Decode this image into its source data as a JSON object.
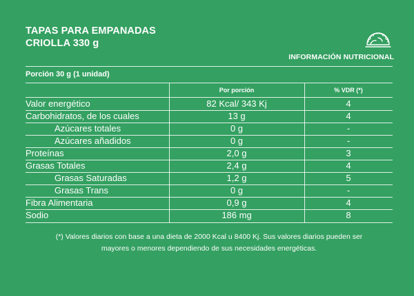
{
  "header": {
    "title_line1": "TAPAS PARA EMPANADAS",
    "title_line2": "CRIOLLA 330 g",
    "info_label": "INFORMACIÓN NUTRICIONAL",
    "icon": "empanada-icon"
  },
  "table": {
    "portion_label": "Porción 30 g (1 unidad)",
    "columns": {
      "per_portion": "Por porción",
      "vdr": "% VDR (*)"
    },
    "rows": [
      {
        "name": "Valor energético",
        "per": "82 Kcal/ 343 Kj",
        "vdr": "4"
      },
      {
        "name": "Carbohidratos, de los cuales",
        "per": "13 g",
        "vdr": "4"
      },
      {
        "name": "Azúcares totales",
        "per": "0 g",
        "vdr": "-"
      },
      {
        "name": "Azúcares añadidos",
        "per": "0 g",
        "vdr": "-"
      },
      {
        "name": "Proteínas",
        "per": "2,0 g",
        "vdr": "3"
      },
      {
        "name": "Grasas Totales",
        "per": "2,4 g",
        "vdr": "4"
      },
      {
        "name": "Grasas Saturadas",
        "per": "1,2 g",
        "vdr": "5"
      },
      {
        "name": "Grasas Trans",
        "per": "0 g",
        "vdr": "-"
      },
      {
        "name": "Fibra Alimentaria",
        "per": "0,9 g",
        "vdr": "4"
      },
      {
        "name": "Sodio",
        "per": "186 mg",
        "vdr": "8"
      }
    ]
  },
  "footnote": {
    "line1": "(*) Valores diarios con base a una dieta de 2000 Kcal u 8400 Kj. Sus valores diarios pueden ser",
    "line2": "mayores o menores dependiendo de sus necesidades energéticas."
  },
  "colors": {
    "background": "#34a061",
    "text": "#ffffff"
  }
}
